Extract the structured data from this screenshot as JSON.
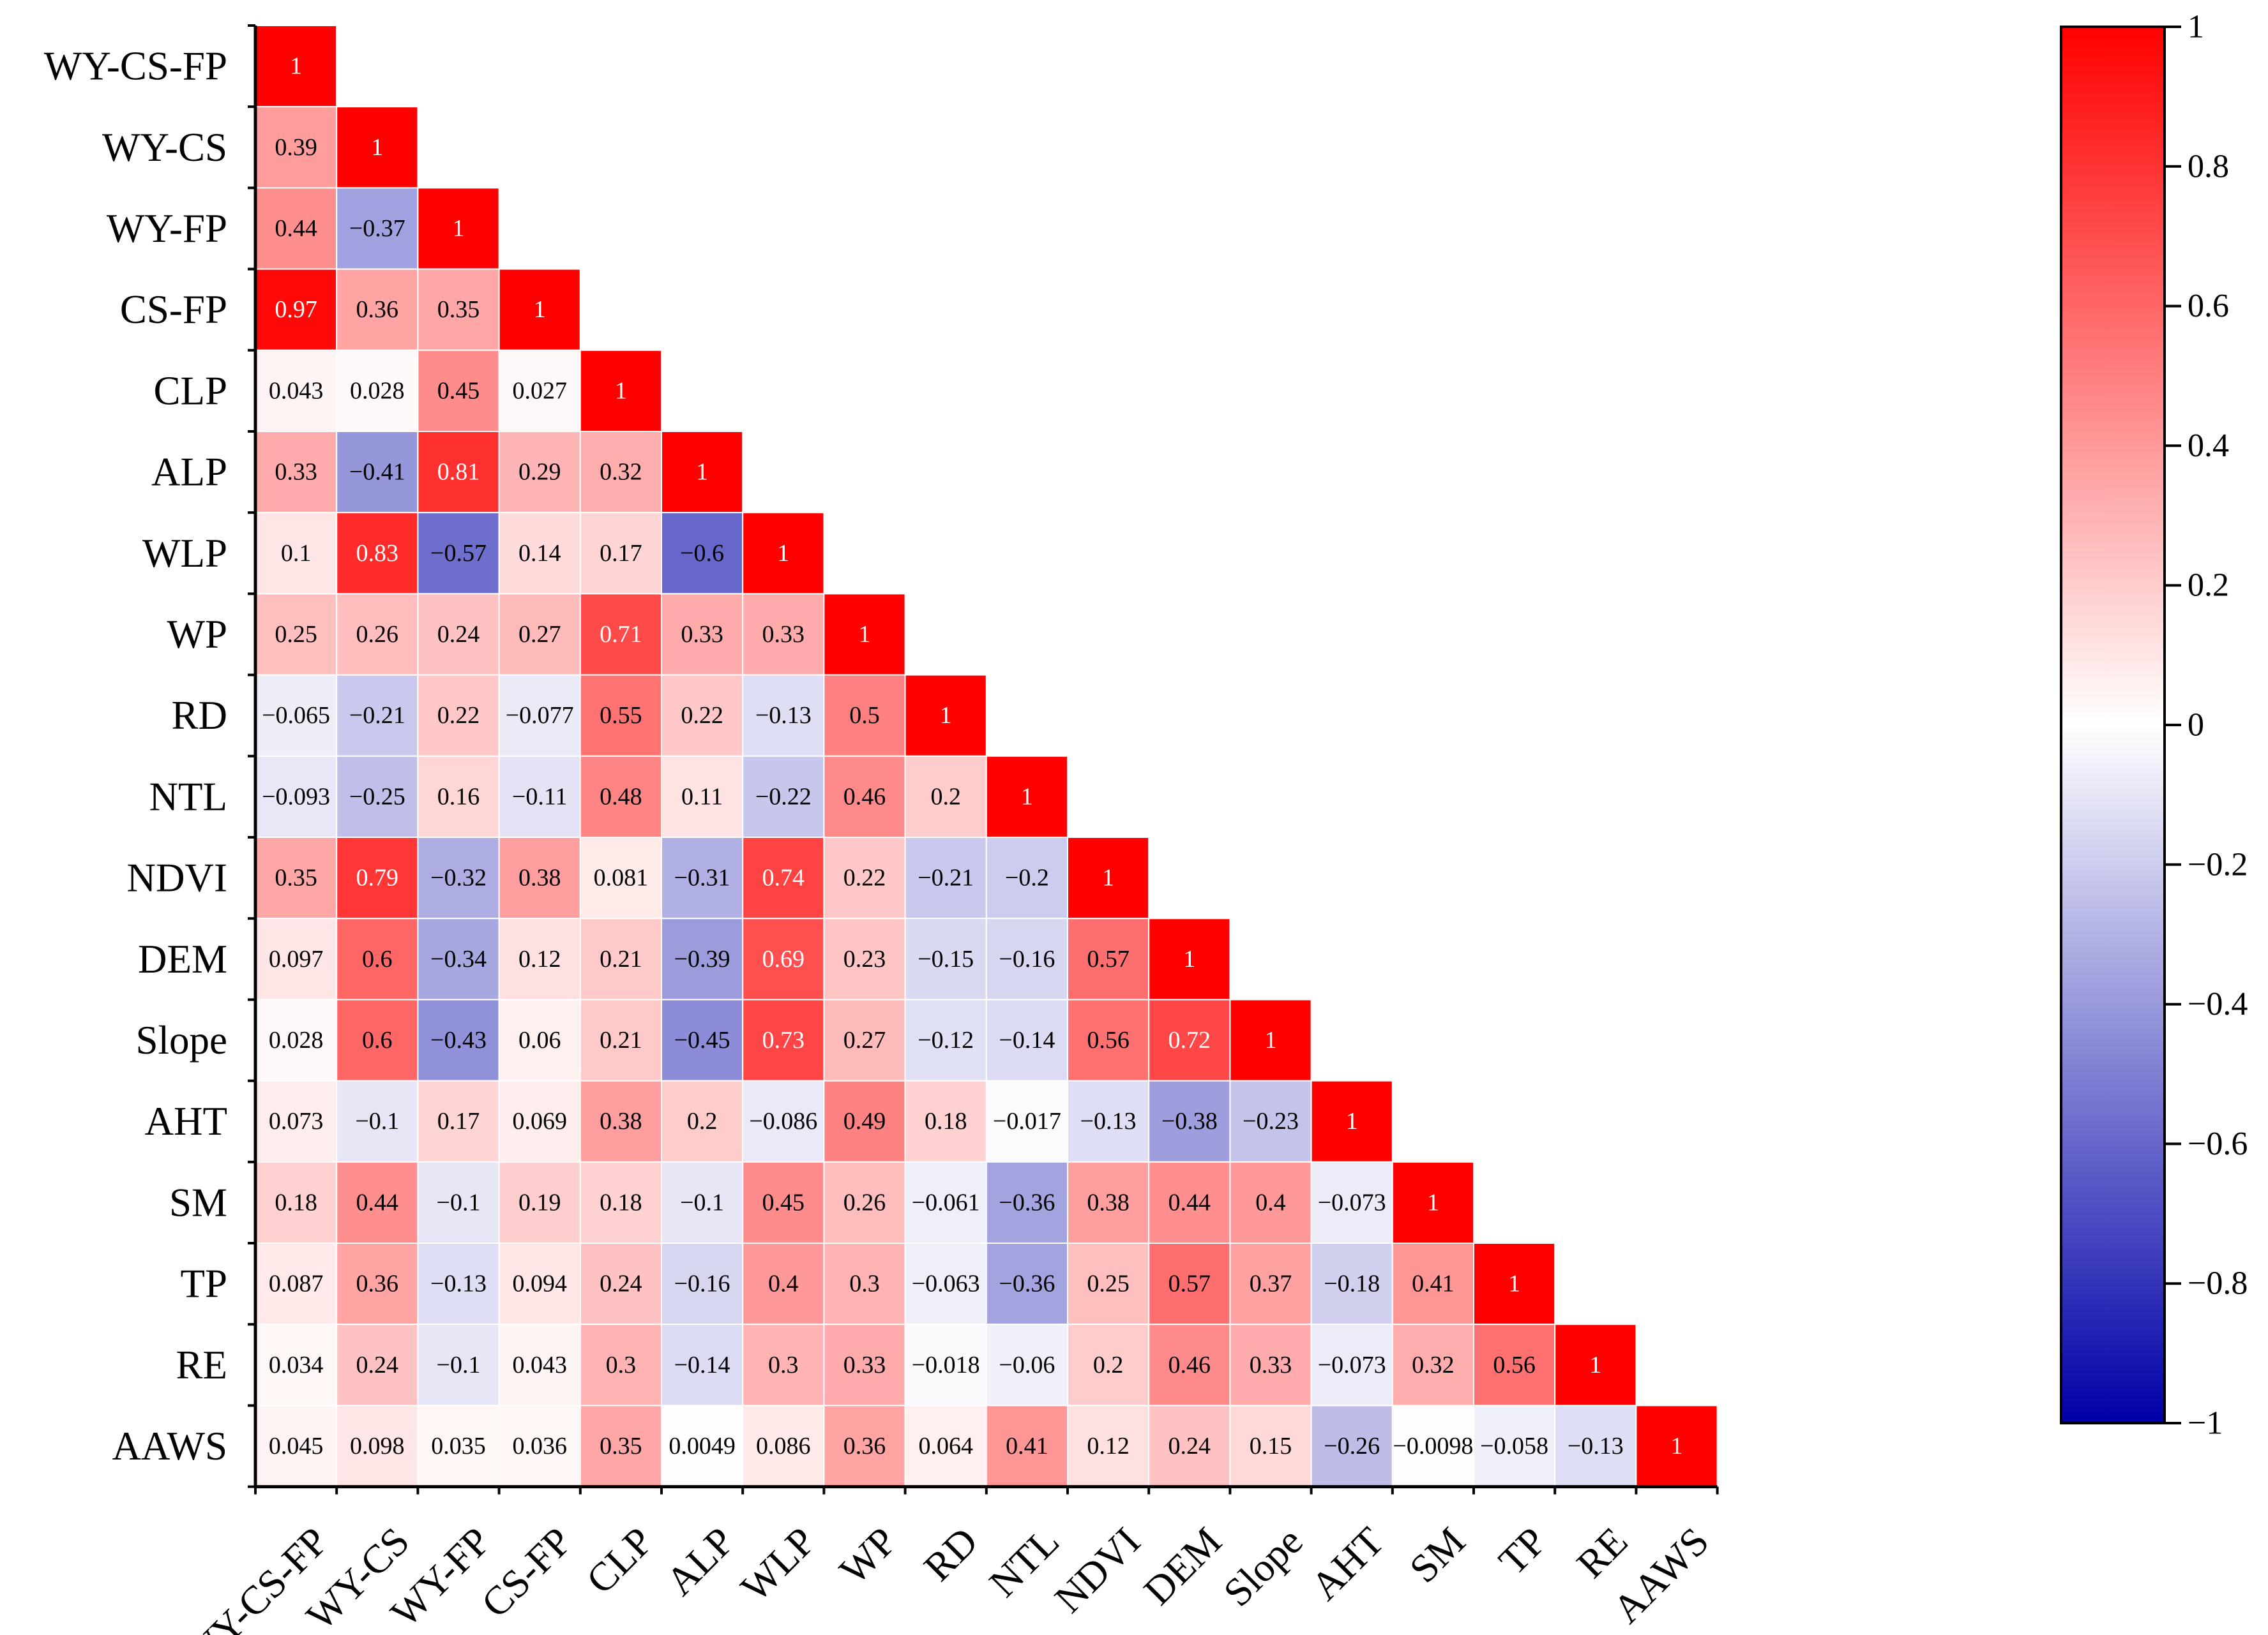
{
  "chart_data": {
    "type": "heatmap",
    "title": "",
    "subtitle": "",
    "variables": [
      "WY-CS-FP",
      "WY-CS",
      "WY-FP",
      "CS-FP",
      "CLP",
      "ALP",
      "WLP",
      "WP",
      "RD",
      "NTL",
      "NDVI",
      "DEM",
      "Slope",
      "AHT",
      "SM",
      "TP",
      "RE",
      "AAWS"
    ],
    "layout": "lower-triangle",
    "values": [
      [
        1
      ],
      [
        0.39,
        1
      ],
      [
        0.44,
        -0.37,
        1
      ],
      [
        0.97,
        0.36,
        0.35,
        1
      ],
      [
        0.043,
        0.028,
        0.45,
        0.027,
        1
      ],
      [
        0.33,
        -0.41,
        0.81,
        0.29,
        0.32,
        1
      ],
      [
        0.1,
        0.83,
        -0.57,
        0.14,
        0.17,
        -0.6,
        1
      ],
      [
        0.25,
        0.26,
        0.24,
        0.27,
        0.71,
        0.33,
        0.33,
        1
      ],
      [
        -0.065,
        -0.21,
        0.22,
        -0.077,
        0.55,
        0.22,
        -0.13,
        0.5,
        1
      ],
      [
        -0.093,
        -0.25,
        0.16,
        -0.11,
        0.48,
        0.11,
        -0.22,
        0.46,
        0.2,
        1
      ],
      [
        0.35,
        0.79,
        -0.32,
        0.38,
        0.081,
        -0.31,
        0.74,
        0.22,
        -0.21,
        -0.2,
        1
      ],
      [
        0.097,
        0.6,
        -0.34,
        0.12,
        0.21,
        -0.39,
        0.69,
        0.23,
        -0.15,
        -0.16,
        0.57,
        1
      ],
      [
        0.028,
        0.6,
        -0.43,
        0.06,
        0.21,
        -0.45,
        0.73,
        0.27,
        -0.12,
        -0.14,
        0.56,
        0.72,
        1
      ],
      [
        0.073,
        -0.1,
        0.17,
        0.069,
        0.38,
        0.2,
        -0.086,
        0.49,
        0.18,
        -0.017,
        -0.13,
        -0.38,
        -0.23,
        1
      ],
      [
        0.18,
        0.44,
        -0.1,
        0.19,
        0.18,
        -0.1,
        0.45,
        0.26,
        -0.061,
        -0.36,
        0.38,
        0.44,
        0.4,
        -0.073,
        1
      ],
      [
        0.087,
        0.36,
        -0.13,
        0.094,
        0.24,
        -0.16,
        0.4,
        0.3,
        -0.063,
        -0.36,
        0.25,
        0.57,
        0.37,
        -0.18,
        0.41,
        1
      ],
      [
        0.034,
        0.24,
        -0.1,
        0.043,
        0.3,
        -0.14,
        0.3,
        0.33,
        -0.018,
        -0.06,
        0.2,
        0.46,
        0.33,
        -0.073,
        0.32,
        0.56,
        1
      ],
      [
        0.045,
        0.098,
        0.035,
        0.036,
        0.35,
        0.0049,
        0.086,
        0.36,
        0.064,
        0.41,
        0.12,
        0.24,
        0.15,
        -0.26,
        -0.0098,
        -0.058,
        -0.13,
        1
      ]
    ],
    "value_labels": [
      [
        "1"
      ],
      [
        "0.39",
        "1"
      ],
      [
        "0.44",
        "−0.37",
        "1"
      ],
      [
        "0.97",
        "0.36",
        "0.35",
        "1"
      ],
      [
        "0.043",
        "0.028",
        "0.45",
        "0.027",
        "1"
      ],
      [
        "0.33",
        "−0.41",
        "0.81",
        "0.29",
        "0.32",
        "1"
      ],
      [
        "0.1",
        "0.83",
        "−0.57",
        "0.14",
        "0.17",
        "−0.6",
        "1"
      ],
      [
        "0.25",
        "0.26",
        "0.24",
        "0.27",
        "0.71",
        "0.33",
        "0.33",
        "1"
      ],
      [
        "−0.065",
        "−0.21",
        "0.22",
        "−0.077",
        "0.55",
        "0.22",
        "−0.13",
        "0.5",
        "1"
      ],
      [
        "−0.093",
        "−0.25",
        "0.16",
        "−0.11",
        "0.48",
        "0.11",
        "−0.22",
        "0.46",
        "0.2",
        "1"
      ],
      [
        "0.35",
        "0.79",
        "−0.32",
        "0.38",
        "0.081",
        "−0.31",
        "0.74",
        "0.22",
        "−0.21",
        "−0.2",
        "1"
      ],
      [
        "0.097",
        "0.6",
        "−0.34",
        "0.12",
        "0.21",
        "−0.39",
        "0.69",
        "0.23",
        "−0.15",
        "−0.16",
        "0.57",
        "1"
      ],
      [
        "0.028",
        "0.6",
        "−0.43",
        "0.06",
        "0.21",
        "−0.45",
        "0.73",
        "0.27",
        "−0.12",
        "−0.14",
        "0.56",
        "0.72",
        "1"
      ],
      [
        "0.073",
        "−0.1",
        "0.17",
        "0.069",
        "0.38",
        "0.2",
        "−0.086",
        "0.49",
        "0.18",
        "−0.017",
        "−0.13",
        "−0.38",
        "−0.23",
        "1"
      ],
      [
        "0.18",
        "0.44",
        "−0.1",
        "0.19",
        "0.18",
        "−0.1",
        "0.45",
        "0.26",
        "−0.061",
        "−0.36",
        "0.38",
        "0.44",
        "0.4",
        "−0.073",
        "1"
      ],
      [
        "0.087",
        "0.36",
        "−0.13",
        "0.094",
        "0.24",
        "−0.16",
        "0.4",
        "0.3",
        "−0.063",
        "−0.36",
        "0.25",
        "0.57",
        "0.37",
        "−0.18",
        "0.41",
        "1"
      ],
      [
        "0.034",
        "0.24",
        "−0.1",
        "0.043",
        "0.3",
        "−0.14",
        "0.3",
        "0.33",
        "−0.018",
        "−0.06",
        "0.2",
        "0.46",
        "0.33",
        "−0.073",
        "0.32",
        "0.56",
        "1"
      ],
      [
        "0.045",
        "0.098",
        "0.035",
        "0.036",
        "0.35",
        "0.0049",
        "0.086",
        "0.36",
        "0.064",
        "0.41",
        "0.12",
        "0.24",
        "0.15",
        "−0.26",
        "−0.0098",
        "−0.058",
        "−0.13",
        "1"
      ]
    ],
    "colorbar": {
      "range": [
        -1,
        1
      ],
      "ticks": [
        1,
        0.8,
        0.6,
        0.4,
        0.2,
        0,
        -0.2,
        -0.4,
        -0.6,
        -0.8,
        -1
      ],
      "tick_labels": [
        "1",
        "0.8",
        "0.6",
        "0.4",
        "0.2",
        "0",
        "−0.2",
        "−0.4",
        "−0.6",
        "−0.8",
        "−1"
      ],
      "colors": {
        "negative": "#0000a8",
        "neutral": "#ffffff",
        "positive": "#ff0000"
      },
      "placement": "right"
    },
    "xlabel": "",
    "ylabel": "",
    "grid": true,
    "cell_border_color": "#ffffff",
    "axis_color": "#000000"
  }
}
